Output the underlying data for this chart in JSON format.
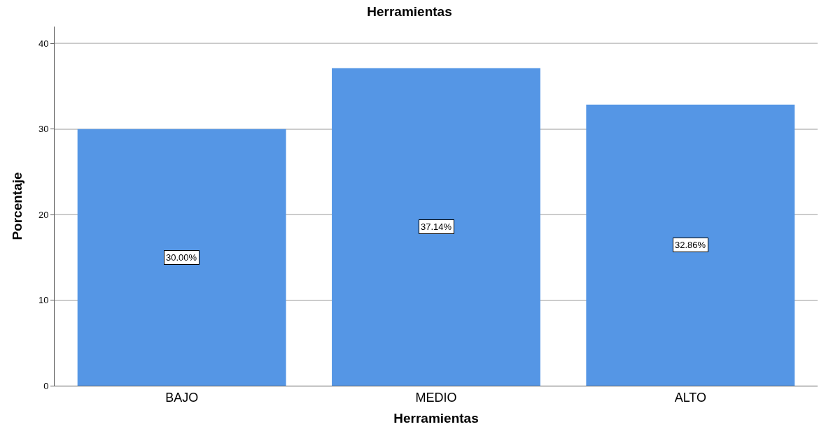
{
  "chart_data": {
    "type": "bar",
    "title": "Herramientas",
    "xlabel": "Herramientas",
    "ylabel": "Porcentaje",
    "categories": [
      "BAJO",
      "MEDIO",
      "ALTO"
    ],
    "values": [
      30.0,
      37.14,
      32.86
    ],
    "value_labels": [
      "30.00%",
      "37.14%",
      "32.86%"
    ],
    "color": "#5596e5",
    "ylim": [
      0,
      42
    ],
    "yticks": [
      0,
      10,
      20,
      30,
      40
    ],
    "grid": "y"
  }
}
